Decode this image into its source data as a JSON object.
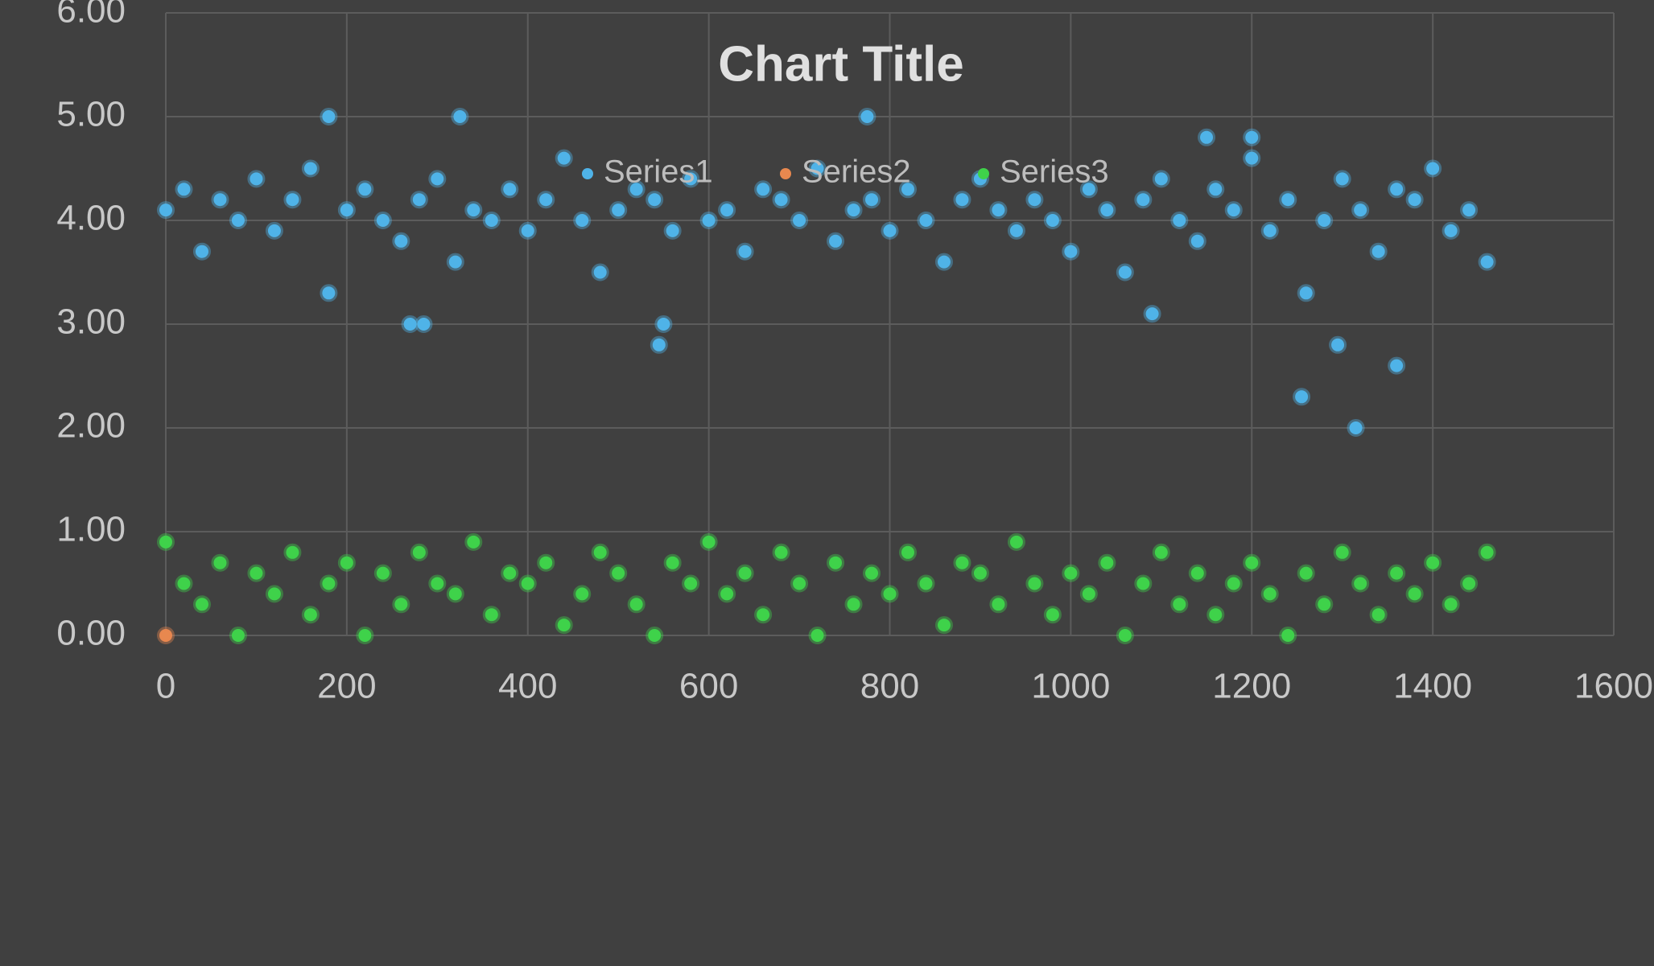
{
  "chart_data": {
    "type": "scatter",
    "title": "Chart Title",
    "legend": "top",
    "grid": true,
    "xlim": [
      0,
      1600
    ],
    "xticks": [
      0,
      200,
      400,
      600,
      800,
      1000,
      1200,
      1400,
      1600
    ],
    "ylim": [
      0,
      6
    ],
    "yticks": [
      {
        "value": 0,
        "label": "0.00"
      },
      {
        "value": 1,
        "label": "1.00"
      },
      {
        "value": 2,
        "label": "2.00"
      },
      {
        "value": 3,
        "label": "3.00"
      },
      {
        "value": 4,
        "label": "4.00"
      },
      {
        "value": 5,
        "label": "5.00"
      },
      {
        "value": 6,
        "label": "6.00"
      }
    ],
    "series": [
      {
        "name": "Series1",
        "color": "#4fb3e8",
        "x": [
          0,
          20,
          40,
          60,
          80,
          100,
          120,
          140,
          160,
          180,
          200,
          220,
          240,
          260,
          280,
          300,
          320,
          340,
          360,
          380,
          400,
          420,
          440,
          460,
          480,
          500,
          520,
          540,
          560,
          580,
          600,
          620,
          640,
          660,
          680,
          700,
          720,
          740,
          760,
          780,
          800,
          820,
          840,
          860,
          880,
          900,
          920,
          940,
          960,
          980,
          1000,
          1020,
          1040,
          1060,
          1080,
          1100,
          1120,
          1140,
          1160,
          1180,
          1200,
          1220,
          1240,
          1260,
          1280,
          1300,
          1320,
          1340,
          1360,
          1380,
          1400,
          1420,
          1440,
          1460,
          180,
          325,
          775,
          1255,
          1315,
          1360,
          1295,
          545,
          550,
          270,
          285,
          1150,
          1200,
          1090
        ],
        "values": [
          4.1,
          4.3,
          3.7,
          4.2,
          4.0,
          4.4,
          3.9,
          4.2,
          4.5,
          3.3,
          4.1,
          4.3,
          4.0,
          3.8,
          4.2,
          4.4,
          3.6,
          4.1,
          4.0,
          4.3,
          3.9,
          4.2,
          4.6,
          4.0,
          3.5,
          4.1,
          4.3,
          4.2,
          3.9,
          4.4,
          4.0,
          4.1,
          3.7,
          4.3,
          4.2,
          4.0,
          4.5,
          3.8,
          4.1,
          4.2,
          3.9,
          4.3,
          4.0,
          3.6,
          4.2,
          4.4,
          4.1,
          3.9,
          4.2,
          4.0,
          3.7,
          4.3,
          4.1,
          3.5,
          4.2,
          4.4,
          4.0,
          3.8,
          4.3,
          4.1,
          4.6,
          3.9,
          4.2,
          3.3,
          4.0,
          4.4,
          4.1,
          3.7,
          4.3,
          4.2,
          4.5,
          3.9,
          4.1,
          3.6,
          5,
          5,
          5,
          2.3,
          2.0,
          2.6,
          2.8,
          2.8,
          3.0,
          3.0,
          3.0,
          4.8,
          4.8,
          3.1
        ]
      },
      {
        "name": "Series2",
        "color": "#e8884f",
        "x": [
          0
        ],
        "values": [
          0
        ]
      },
      {
        "name": "Series3",
        "color": "#3fd24a",
        "x": [
          0,
          20,
          40,
          60,
          80,
          100,
          120,
          140,
          160,
          180,
          200,
          220,
          240,
          260,
          280,
          300,
          320,
          340,
          360,
          380,
          400,
          420,
          440,
          460,
          480,
          500,
          520,
          540,
          560,
          580,
          600,
          620,
          640,
          660,
          680,
          700,
          720,
          740,
          760,
          780,
          800,
          820,
          840,
          860,
          880,
          900,
          920,
          940,
          960,
          980,
          1000,
          1020,
          1040,
          1060,
          1080,
          1100,
          1120,
          1140,
          1160,
          1180,
          1200,
          1220,
          1240,
          1260,
          1280,
          1300,
          1320,
          1340,
          1360,
          1380,
          1400,
          1420,
          1440,
          1460
        ],
        "values": [
          0.9,
          0.5,
          0.3,
          0.7,
          0.0,
          0.6,
          0.4,
          0.8,
          0.2,
          0.5,
          0.7,
          0.0,
          0.6,
          0.3,
          0.8,
          0.5,
          0.4,
          0.9,
          0.2,
          0.6,
          0.5,
          0.7,
          0.1,
          0.4,
          0.8,
          0.6,
          0.3,
          0.0,
          0.7,
          0.5,
          0.9,
          0.4,
          0.6,
          0.2,
          0.8,
          0.5,
          0.0,
          0.7,
          0.3,
          0.6,
          0.4,
          0.8,
          0.5,
          0.1,
          0.7,
          0.6,
          0.3,
          0.9,
          0.5,
          0.2,
          0.6,
          0.4,
          0.7,
          0.0,
          0.5,
          0.8,
          0.3,
          0.6,
          0.2,
          0.5,
          0.7,
          0.4,
          0.0,
          0.6,
          0.3,
          0.8,
          0.5,
          0.2,
          0.6,
          0.4,
          0.7,
          0.3,
          0.5,
          0.8
        ]
      }
    ]
  }
}
